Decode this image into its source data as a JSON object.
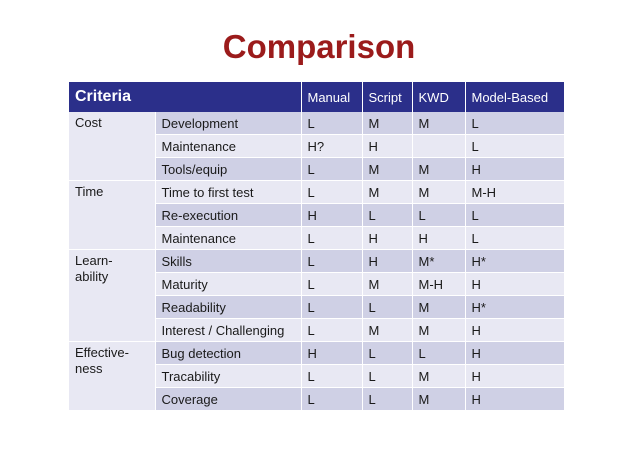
{
  "title": "Comparison",
  "table": {
    "headers": [
      "Criteria",
      "Manual",
      "Script",
      "KWD",
      "Model-Based"
    ],
    "groups": [
      {
        "label_lines": [
          "Cost"
        ],
        "rows": [
          [
            "Development",
            "L",
            "M",
            "M",
            "L"
          ],
          [
            "Maintenance",
            "H?",
            "H",
            "",
            "L"
          ],
          [
            "Tools/equip",
            "L",
            "M",
            "M",
            "H"
          ]
        ]
      },
      {
        "label_lines": [
          "Time"
        ],
        "rows": [
          [
            "Time to first test",
            "L",
            "M",
            "M",
            "M-H"
          ],
          [
            "Re-execution",
            "H",
            "L",
            "L",
            "L"
          ],
          [
            "Maintenance",
            "L",
            "H",
            "H",
            "L"
          ]
        ]
      },
      {
        "label_lines": [
          "Learn-",
          "ability"
        ],
        "rows": [
          [
            "Skills",
            "L",
            "H",
            "M*",
            "H*"
          ],
          [
            "Maturity",
            "L",
            "M",
            "M-H",
            "H"
          ],
          [
            "Readability",
            "L",
            "L",
            "M",
            "H*"
          ],
          [
            "Interest / Challenging",
            "L",
            "M",
            "M",
            "H"
          ]
        ]
      },
      {
        "label_lines": [
          "Effective-",
          "ness"
        ],
        "rows": [
          [
            "Bug detection",
            "H",
            "L",
            "L",
            "H"
          ],
          [
            "Tracability",
            "L",
            "L",
            "M",
            "H"
          ],
          [
            "Coverage",
            "L",
            "L",
            "M",
            "H"
          ]
        ]
      }
    ]
  }
}
